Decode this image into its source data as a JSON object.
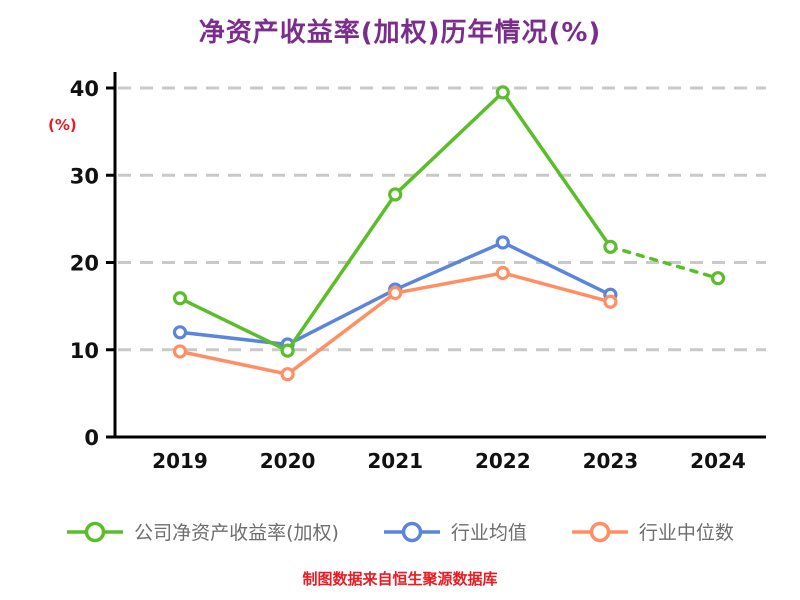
{
  "title": "净资产收益率(加权)历年情况(%)",
  "ylabel": "(%)",
  "footer": "制图数据来自恒生聚源数据库",
  "colors": {
    "title": "#7B2D8E",
    "accent_red": "#EA1B22",
    "grid": "#C9C9C9",
    "axis": "#000000",
    "tick_text": "#111111",
    "legend_text": "#6E6E6E"
  },
  "chart_data": {
    "type": "line",
    "categories": [
      "2019",
      "2020",
      "2021",
      "2022",
      "2023",
      "2024"
    ],
    "yticks": [
      0,
      10,
      20,
      30,
      40
    ],
    "ylim": [
      0,
      40
    ],
    "grid": "horizontal-dashed",
    "legend_position": "bottom",
    "series": [
      {
        "name": "公司净资产收益率(加权)",
        "color": "#5ABE29",
        "values": [
          15.9,
          9.9,
          27.8,
          39.5,
          21.8,
          18.2
        ],
        "dashed_segments": [
          [
            4,
            5
          ]
        ],
        "note": "2023-2024 segment dashed (annualized)"
      },
      {
        "name": "行业均值",
        "color": "#5A84DE",
        "values": [
          12.0,
          10.6,
          16.9,
          22.3,
          16.3,
          null
        ]
      },
      {
        "name": "行业中位数",
        "color": "#FF8F63",
        "values": [
          9.8,
          7.2,
          16.5,
          18.8,
          15.5,
          null
        ]
      }
    ]
  }
}
